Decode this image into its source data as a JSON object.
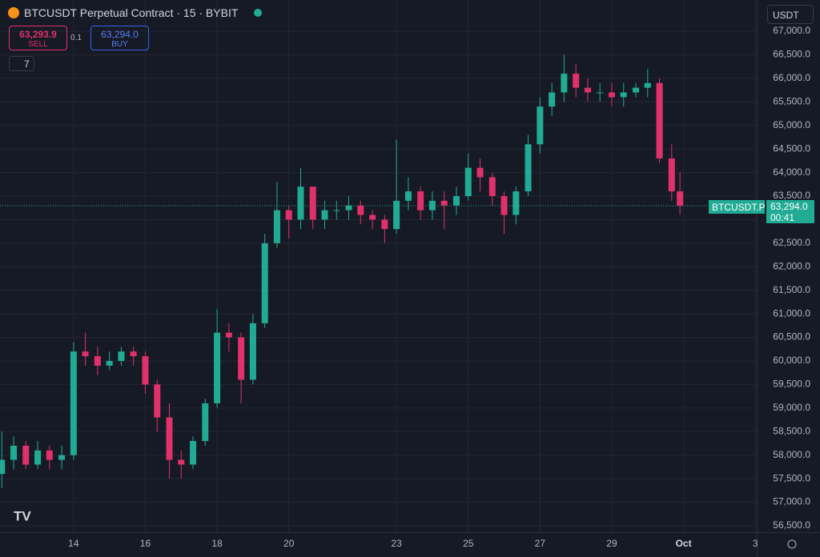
{
  "header": {
    "title": "BTCUSDT Perpetual Contract · 15 · BYBIT",
    "sell_price": "63,293.9",
    "sell_label": "SELL",
    "spread": "0.1",
    "buy_price": "63,294.0",
    "buy_label": "BUY",
    "indicators": "7",
    "currency": "USDT",
    "symbol_tag": "BTCUSDT.P",
    "countdown": "00:41"
  },
  "chart_data": {
    "type": "candlestick",
    "up_color": "#22ab94",
    "down_color": "#e0316b",
    "grid": true,
    "last_price": {
      "value": 63294,
      "label": "63,294.0"
    },
    "x": [
      12,
      12.33,
      12.67,
      13,
      13.33,
      13.67,
      14,
      14.33,
      14.67,
      15,
      15.33,
      15.67,
      16,
      16.33,
      16.67,
      17,
      17.33,
      17.67,
      18,
      18.33,
      18.67,
      19,
      19.33,
      19.67,
      20,
      20.33,
      20.67,
      21,
      21.33,
      21.67,
      22,
      22.33,
      22.67,
      23,
      23.33,
      23.67,
      24,
      24.33,
      24.67,
      25,
      25.33,
      25.67,
      26,
      26.33,
      26.67,
      27,
      27.33,
      27.67,
      28,
      28.33,
      28.67,
      29,
      29.33,
      29.67,
      30,
      30.33,
      30.67,
      30.9
    ],
    "open": [
      57600,
      57900,
      58200,
      57800,
      58100,
      57900,
      58000,
      60200,
      60100,
      59900,
      60000,
      60200,
      60100,
      59500,
      58800,
      57900,
      57800,
      58300,
      59100,
      60600,
      60500,
      59600,
      60800,
      62500,
      63200,
      63000,
      63700,
      63000,
      63200,
      63200,
      63300,
      63100,
      63000,
      62800,
      63400,
      63600,
      63200,
      63400,
      63300,
      63500,
      64100,
      63900,
      63500,
      63100,
      63600,
      64600,
      65400,
      65700,
      66100,
      65800,
      65700,
      65700,
      65600,
      65700,
      65800,
      65900,
      64300,
      63600
    ],
    "high": [
      58500,
      58400,
      58300,
      58300,
      58200,
      58200,
      60400,
      60600,
      60300,
      60200,
      60300,
      60300,
      60200,
      59600,
      59100,
      58100,
      58400,
      59200,
      61100,
      60800,
      60600,
      61000,
      62700,
      63800,
      63300,
      64100,
      63700,
      63400,
      63400,
      63500,
      63400,
      63200,
      63100,
      64700,
      63900,
      63700,
      63600,
      63600,
      63700,
      64400,
      64300,
      64000,
      63600,
      63700,
      64800,
      65600,
      65900,
      66500,
      66300,
      66000,
      65900,
      65900,
      65900,
      65900,
      66200,
      66000,
      64600,
      64000
    ],
    "low": [
      57300,
      57700,
      57700,
      57700,
      57700,
      57700,
      57900,
      59900,
      59700,
      59800,
      59900,
      59900,
      59300,
      58500,
      57500,
      57500,
      57700,
      58200,
      59000,
      60200,
      59100,
      59500,
      60700,
      62400,
      62600,
      62800,
      62800,
      62800,
      63000,
      63000,
      62900,
      62800,
      62500,
      62700,
      63200,
      63000,
      63000,
      62800,
      63100,
      63400,
      63600,
      63300,
      62700,
      62900,
      63500,
      64400,
      65200,
      65500,
      65600,
      65500,
      65500,
      65400,
      65400,
      65600,
      65600,
      64200,
      63400,
      63100
    ],
    "close": [
      57900,
      58200,
      57800,
      58100,
      57900,
      58000,
      60200,
      60100,
      59900,
      60000,
      60200,
      60100,
      59500,
      58800,
      57900,
      57800,
      58300,
      59100,
      60600,
      60500,
      59600,
      60800,
      62500,
      63200,
      63000,
      63700,
      63000,
      63200,
      63200,
      63300,
      63100,
      63000,
      62800,
      63400,
      63600,
      63200,
      63400,
      63300,
      63500,
      64100,
      63900,
      63500,
      63100,
      63600,
      64600,
      65400,
      65700,
      66100,
      65800,
      65700,
      65700,
      65600,
      65700,
      65800,
      65900,
      64300,
      63600,
      63294
    ],
    "xlim": [
      11.95,
      33.04
    ],
    "ylim": [
      56364,
      67663
    ],
    "xticks": [
      14,
      16,
      18,
      20,
      23,
      25,
      27,
      29,
      {
        "value": 31,
        "label": "Oct"
      },
      {
        "value": 33,
        "label": "3"
      }
    ],
    "yticks": [
      {
        "value": 56500,
        "label": "56,500.0"
      },
      {
        "value": 57000,
        "label": "57,000.0"
      },
      {
        "value": 57500,
        "label": "57,500.0"
      },
      {
        "value": 58000,
        "label": "58,000.0"
      },
      {
        "value": 58500,
        "label": "58,500.0"
      },
      {
        "value": 59000,
        "label": "59,000.0"
      },
      {
        "value": 59500,
        "label": "59,500.0"
      },
      {
        "value": 60000,
        "label": "60,000.0"
      },
      {
        "value": 60500,
        "label": "60,500.0"
      },
      {
        "value": 61000,
        "label": "61,000.0"
      },
      {
        "value": 61500,
        "label": "61,500.0"
      },
      {
        "value": 62000,
        "label": "62,000.0"
      },
      {
        "value": 62500,
        "label": "62,500.0"
      },
      {
        "value": 63000,
        "label": "63,000.0"
      },
      {
        "value": 63500,
        "label": "63,500.0"
      },
      {
        "value": 64000,
        "label": "64,000.0"
      },
      {
        "value": 64500,
        "label": "64,500.0"
      },
      {
        "value": 65000,
        "label": "65,000.0"
      },
      {
        "value": 65500,
        "label": "65,500.0"
      },
      {
        "value": 66000,
        "label": "66,000.0"
      },
      {
        "value": 66500,
        "label": "66,500.0"
      },
      {
        "value": 67000,
        "label": "67,000.0"
      }
    ]
  }
}
